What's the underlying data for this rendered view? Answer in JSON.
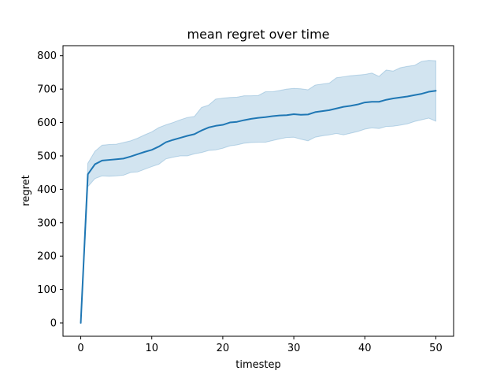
{
  "chart_data": {
    "type": "line",
    "title": "mean regret over time",
    "xlabel": "timestep",
    "ylabel": "regret",
    "xlim": [
      -2.5,
      52.5
    ],
    "ylim": [
      -40,
      830
    ],
    "xticks": [
      0,
      10,
      20,
      30,
      40,
      50
    ],
    "yticks": [
      0,
      100,
      200,
      300,
      400,
      500,
      600,
      700,
      800
    ],
    "grid": false,
    "series": [
      {
        "color": "#1f77b4",
        "band_color": "#1f77b4",
        "band_opacity": 0.2,
        "x": [
          0,
          1,
          2,
          3,
          4,
          5,
          6,
          7,
          8,
          9,
          10,
          11,
          12,
          13,
          14,
          15,
          16,
          17,
          18,
          19,
          20,
          21,
          22,
          23,
          24,
          25,
          26,
          27,
          28,
          29,
          30,
          31,
          32,
          33,
          34,
          35,
          36,
          37,
          38,
          39,
          40,
          41,
          42,
          43,
          44,
          45,
          46,
          47,
          48,
          49,
          50
        ],
        "mean": [
          0,
          445,
          475,
          486,
          488,
          490,
          492,
          498,
          505,
          512,
          518,
          528,
          541,
          548,
          554,
          560,
          565,
          576,
          585,
          590,
          593,
          600,
          602,
          607,
          611,
          614,
          616,
          619,
          621,
          622,
          625,
          623,
          624,
          631,
          634,
          637,
          642,
          647,
          650,
          654,
          660,
          662,
          662,
          668,
          672,
          675,
          678,
          682,
          686,
          692,
          695
        ],
        "upper": [
          0,
          478,
          514,
          532,
          534,
          535,
          540,
          545,
          553,
          563,
          572,
          585,
          593,
          600,
          608,
          615,
          618,
          645,
          652,
          670,
          673,
          675,
          676,
          680,
          680,
          681,
          692,
          692,
          696,
          700,
          702,
          701,
          698,
          712,
          715,
          718,
          734,
          737,
          740,
          742,
          744,
          748,
          738,
          757,
          754,
          764,
          768,
          771,
          783,
          786,
          785
        ],
        "lower": [
          0,
          408,
          432,
          440,
          439,
          440,
          442,
          450,
          452,
          460,
          468,
          475,
          491,
          496,
          500,
          500,
          506,
          510,
          516,
          518,
          523,
          530,
          533,
          538,
          540,
          541,
          541,
          546,
          551,
          555,
          556,
          550,
          545,
          556,
          560,
          563,
          567,
          563,
          568,
          573,
          580,
          584,
          582,
          588,
          589,
          592,
          596,
          603,
          608,
          613,
          604
        ]
      }
    ]
  }
}
